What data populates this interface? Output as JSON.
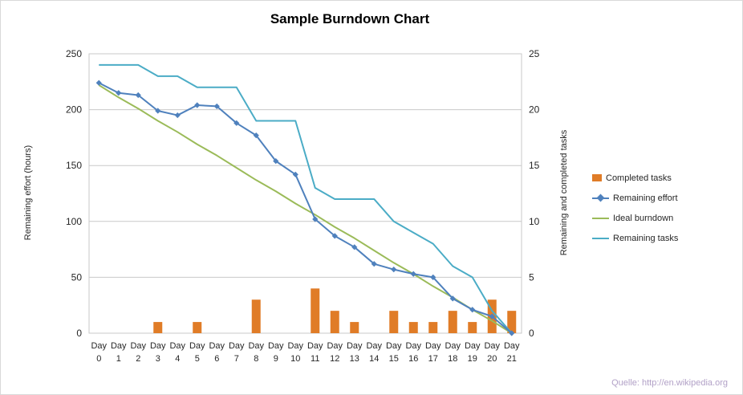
{
  "title": "Sample Burndown Chart",
  "source_note": "Quelle: http://en.wikipedia.org",
  "colors": {
    "grid": "#c9c9c9",
    "plot_border": "#c9c9c9",
    "axis_text": "#262626",
    "completed_tasks": "#e07c27",
    "remaining_effort": "#4f81bd",
    "ideal_burndown": "#9bbb59",
    "remaining_tasks": "#4bacc6",
    "source_note": "#b2a1c7"
  },
  "axes": {
    "left": {
      "title": "Remaining effort (hours)",
      "ticks": [
        0,
        50,
        100,
        150,
        200,
        250
      ],
      "range": [
        0,
        250
      ]
    },
    "right": {
      "title": "Remaining and completed tasks",
      "ticks": [
        0,
        5,
        10,
        15,
        20,
        25
      ],
      "range": [
        0,
        25
      ]
    }
  },
  "chart_data": {
    "type": "combo",
    "title": "Sample Burndown Chart",
    "xlabel": "",
    "ylabel_left": "Remaining effort (hours)",
    "ylabel_right": "Remaining and completed tasks",
    "ylim_left": [
      0,
      250
    ],
    "ylim_right": [
      0,
      25
    ],
    "grid": true,
    "legend_position": "right",
    "categories": [
      "Day 0",
      "Day 1",
      "Day 2",
      "Day 3",
      "Day 4",
      "Day 5",
      "Day 6",
      "Day 7",
      "Day 8",
      "Day 9",
      "Day 10",
      "Day 11",
      "Day 12",
      "Day 13",
      "Day 14",
      "Day 15",
      "Day 16",
      "Day 17",
      "Day 18",
      "Day 19",
      "Day 20",
      "Day 21"
    ],
    "series": [
      {
        "name": "Completed tasks",
        "type": "bar",
        "axis": "right",
        "color": "#e07c27",
        "values": [
          0,
          0,
          0,
          1,
          0,
          1,
          0,
          0,
          3,
          0,
          0,
          4,
          2,
          1,
          0,
          2,
          1,
          1,
          2,
          1,
          3,
          2
        ]
      },
      {
        "name": "Remaining effort",
        "type": "line",
        "axis": "left",
        "marker": "diamond",
        "color": "#4f81bd",
        "values": [
          224,
          215,
          213,
          199,
          195,
          204,
          203,
          188,
          177,
          154,
          142,
          102,
          87,
          77,
          62,
          57,
          53,
          50,
          31,
          21,
          15,
          0
        ]
      },
      {
        "name": "Ideal burndown",
        "type": "line",
        "axis": "left",
        "color": "#9bbb59",
        "values": [
          222,
          211,
          201,
          190,
          180,
          169,
          159,
          148,
          137,
          127,
          116,
          106,
          95,
          85,
          74,
          63,
          53,
          42,
          32,
          21,
          11,
          0
        ]
      },
      {
        "name": "Remaining tasks",
        "type": "line",
        "axis": "right",
        "color": "#4bacc6",
        "values": [
          24,
          24,
          24,
          23,
          23,
          22,
          22,
          22,
          19,
          19,
          19,
          13,
          12,
          12,
          12,
          10,
          9,
          8,
          6,
          5,
          2,
          0
        ]
      }
    ]
  }
}
